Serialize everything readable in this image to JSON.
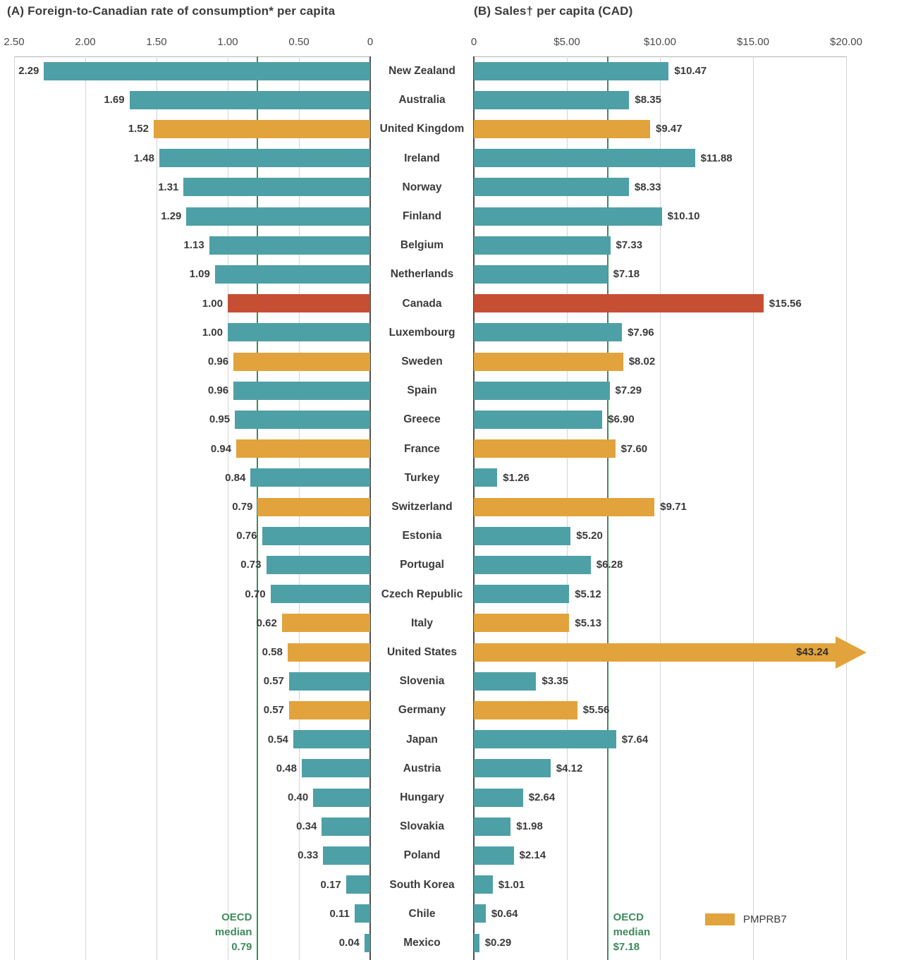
{
  "colors": {
    "teal": "#4EA0A7",
    "pmprb7": "#E2A33C",
    "canada": "#C64F33",
    "median": "#3E8B5C",
    "grid": "#d4d4d4",
    "zero_axis": "#4d4d4d",
    "text": "#3b3b3b"
  },
  "panel_a": {
    "title": "(A) Foreign-to-Canadian rate of consumption* per capita",
    "ticks": [
      {
        "label": "2.50",
        "value": 2.5
      },
      {
        "label": "2.00",
        "value": 2.0
      },
      {
        "label": "1.50",
        "value": 1.5
      },
      {
        "label": "1.00",
        "value": 1.0
      },
      {
        "label": "0.50",
        "value": 0.5
      },
      {
        "label": "0",
        "value": 0
      }
    ],
    "axis_max": 2.5,
    "median": {
      "value": 0.79,
      "label_lines": [
        "OECD",
        "median",
        "0.79"
      ]
    }
  },
  "panel_b": {
    "title": "(B) Sales† per capita (CAD)",
    "ticks": [
      {
        "label": "0",
        "value": 0
      },
      {
        "label": "$5.00",
        "value": 5
      },
      {
        "label": "$10.00",
        "value": 10
      },
      {
        "label": "$15.00",
        "value": 15
      },
      {
        "label": "$20.00",
        "value": 20
      }
    ],
    "axis_max": 20,
    "median": {
      "value": 7.18,
      "label_lines": [
        "OECD",
        "median",
        "$7.18"
      ]
    }
  },
  "legend": {
    "label": "PMPRB7"
  },
  "chart_data": {
    "type": "bar",
    "orientation": "horizontal",
    "layout": "back-to-back panels, panel A bars grow leftward from 0, panel B bars grow rightward from 0",
    "categories": [
      "New Zealand",
      "Australia",
      "United Kingdom",
      "Ireland",
      "Norway",
      "Finland",
      "Belgium",
      "Netherlands",
      "Canada",
      "Luxembourg",
      "Sweden",
      "Spain",
      "Greece",
      "France",
      "Turkey",
      "Switzerland",
      "Estonia",
      "Portugal",
      "Czech Republic",
      "Italy",
      "United States",
      "Slovenia",
      "Germany",
      "Japan",
      "Austria",
      "Hungary",
      "Slovakia",
      "Poland",
      "South Korea",
      "Chile",
      "Mexico"
    ],
    "series": [
      {
        "name": "Foreign-to-Canadian rate of consumption per capita",
        "axis_range": [
          0,
          2.5
        ],
        "values": [
          2.29,
          1.69,
          1.52,
          1.48,
          1.31,
          1.29,
          1.13,
          1.09,
          1.0,
          1.0,
          0.96,
          0.96,
          0.95,
          0.94,
          0.84,
          0.79,
          0.76,
          0.73,
          0.7,
          0.62,
          0.58,
          0.57,
          0.57,
          0.54,
          0.48,
          0.4,
          0.34,
          0.33,
          0.17,
          0.11,
          0.04
        ],
        "labels": [
          "2.29",
          "1.69",
          "1.52",
          "1.48",
          "1.31",
          "1.29",
          "1.13",
          "1.09",
          "1.00",
          "1.00",
          "0.96",
          "0.96",
          "0.95",
          "0.94",
          "0.84",
          "0.79",
          "0.76",
          "0.73",
          "0.70",
          "0.62",
          "0.58",
          "0.57",
          "0.57",
          "0.54",
          "0.48",
          "0.40",
          "0.34",
          "0.33",
          "0.17",
          "0.11",
          "0.04"
        ]
      },
      {
        "name": "Sales per capita (CAD)",
        "axis_range": [
          0,
          20
        ],
        "values": [
          10.47,
          8.35,
          9.47,
          11.88,
          8.33,
          10.1,
          7.33,
          7.18,
          15.56,
          7.96,
          8.02,
          7.29,
          6.9,
          7.6,
          1.26,
          9.71,
          5.2,
          6.28,
          5.12,
          5.13,
          43.24,
          3.35,
          5.56,
          7.64,
          4.12,
          2.64,
          1.98,
          2.14,
          1.01,
          0.64,
          0.29
        ],
        "labels": [
          "$10.47",
          "$8.35",
          "$9.47",
          "$11.88",
          "$8.33",
          "$10.10",
          "$7.33",
          "$7.18",
          "$15.56",
          "$7.96",
          "$8.02",
          "$7.29",
          "$6.90",
          "$7.60",
          "$1.26",
          "$9.71",
          "$5.20",
          "$6.28",
          "$5.12",
          "$5.13",
          "$43.24",
          "$3.35",
          "$5.56",
          "$7.64",
          "$4.12",
          "$2.64",
          "$1.98",
          "$2.14",
          "$1.01",
          "$0.64",
          "$0.29"
        ]
      }
    ],
    "bar_colors": [
      "teal",
      "teal",
      "pmprb7",
      "teal",
      "teal",
      "teal",
      "teal",
      "teal",
      "canada",
      "teal",
      "pmprb7",
      "teal",
      "teal",
      "pmprb7",
      "teal",
      "pmprb7",
      "teal",
      "teal",
      "teal",
      "pmprb7",
      "pmprb7",
      "teal",
      "pmprb7",
      "teal",
      "teal",
      "teal",
      "teal",
      "teal",
      "teal",
      "teal",
      "teal"
    ],
    "overflow_index": 20,
    "medians": {
      "panel_a": 0.79,
      "panel_b": 7.18
    },
    "grid": true,
    "legend_position": "bottom-right"
  }
}
